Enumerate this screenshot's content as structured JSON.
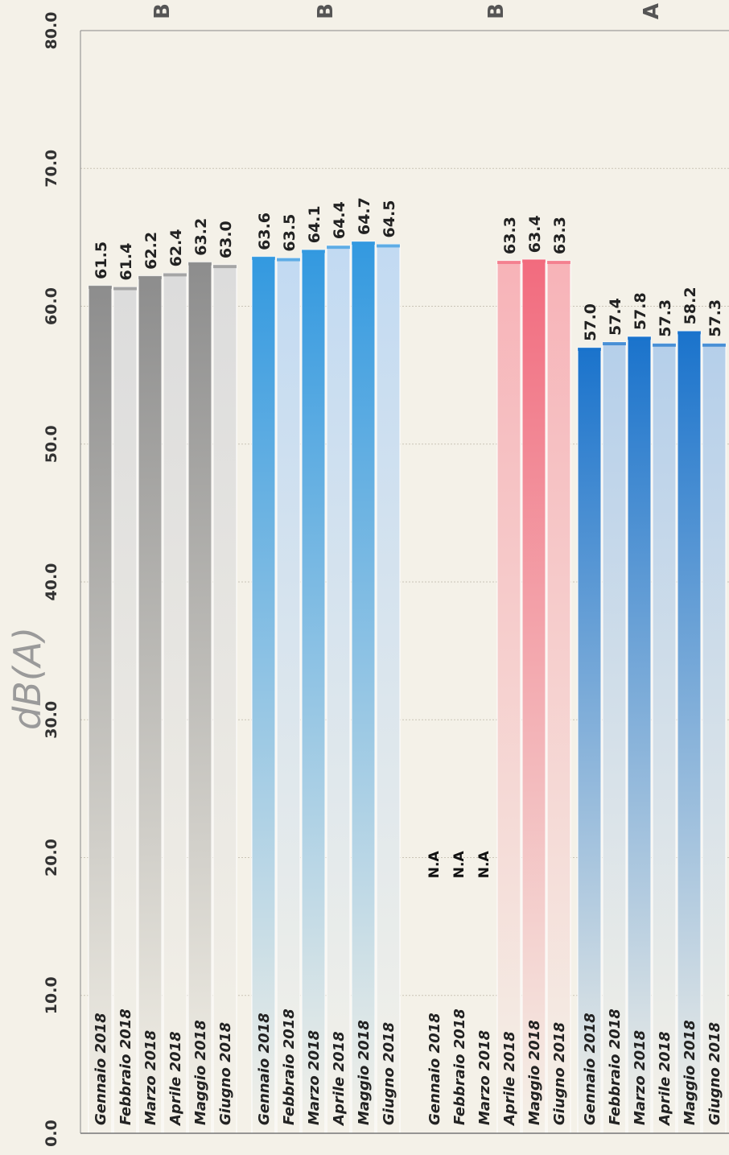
{
  "chart_data": {
    "type": "bar",
    "orientation": "horizontal-rotated",
    "ylabel": "dB(A)",
    "ylim": [
      0,
      80
    ],
    "yticks": [
      "0.0",
      "10.0",
      "20.0",
      "30.0",
      "40.0",
      "50.0",
      "60.0",
      "70.0",
      "80.0"
    ],
    "grid": true,
    "groups": [
      {
        "label": "B",
        "colors": [
          "#8d8d8d",
          "#dcdcdc"
        ],
        "categories": [
          "Gennaio 2018",
          "Febbraio 2018",
          "Marzo 2018",
          "Aprile 2018",
          "Maggio 2018",
          "Giugno 2018"
        ],
        "values": [
          61.5,
          61.4,
          62.2,
          62.4,
          63.2,
          63.0
        ],
        "labels": [
          "61.5",
          "61.4",
          "62.2",
          "62.4",
          "63.2",
          "63.0"
        ]
      },
      {
        "label": "B",
        "colors": [
          "#3399e0",
          "#c2daf2"
        ],
        "categories": [
          "Gennaio 2018",
          "Febbraio 2018",
          "Marzo 2018",
          "Aprile 2018",
          "Maggio 2018",
          "Giugno 2018"
        ],
        "values": [
          63.6,
          63.5,
          64.1,
          64.4,
          64.7,
          64.5
        ],
        "labels": [
          "63.6",
          "63.5",
          "64.1",
          "64.4",
          "64.7",
          "64.5"
        ]
      },
      {
        "label": "B",
        "colors": [
          "#f26b7e",
          "#f7b3b8"
        ],
        "categories": [
          "Gennaio 2018",
          "Febbraio 2018",
          "Marzo 2018",
          "Aprile 2018",
          "Maggio 2018",
          "Giugno 2018"
        ],
        "values": [
          null,
          null,
          null,
          63.3,
          63.4,
          63.3
        ],
        "labels": [
          "N.A",
          "N.A",
          "N.A",
          "63.3",
          "63.4",
          "63.3"
        ]
      },
      {
        "label": "A",
        "colors": [
          "#1a73cc",
          "#b5cfea"
        ],
        "categories": [
          "Gennaio 2018",
          "Febbraio 2018",
          "Marzo 2018",
          "Aprile 2018",
          "Maggio 2018",
          "Giugno 2018"
        ],
        "values": [
          57.0,
          57.4,
          57.8,
          57.3,
          58.2,
          57.3
        ],
        "labels": [
          "57.0",
          "57.4",
          "57.8",
          "57.3",
          "58.2",
          "57.3"
        ]
      }
    ]
  }
}
